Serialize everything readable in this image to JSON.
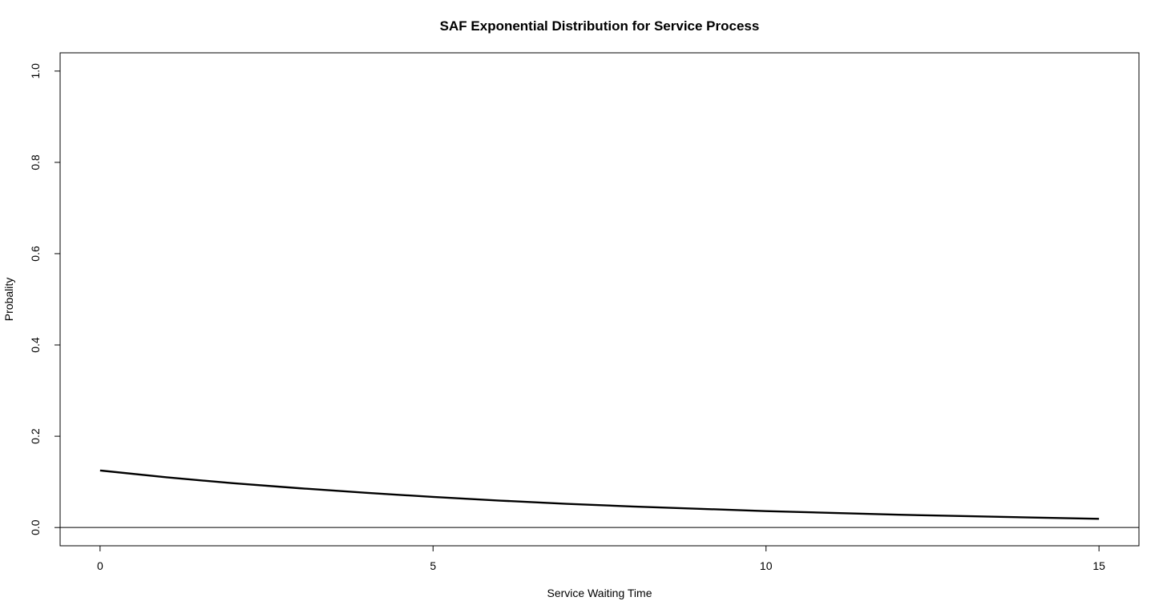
{
  "chart_data": {
    "type": "line",
    "title": "SAF Exponential Distribution for Service Process",
    "xlabel": "Service Waiting Time",
    "ylabel": "Probality",
    "xlim": [
      -0.6,
      15.6
    ],
    "ylim": [
      -0.04,
      1.04
    ],
    "x_ticks": [
      0,
      5,
      10,
      15
    ],
    "x_tick_labels": [
      "0",
      "5",
      "10",
      "15"
    ],
    "y_ticks": [
      0.0,
      0.2,
      0.4,
      0.6,
      0.8,
      1.0
    ],
    "y_tick_labels": [
      "0.0",
      "0.2",
      "0.4",
      "0.6",
      "0.8",
      "1.0"
    ],
    "reference_line": {
      "y": 0
    },
    "grid": false,
    "legend": "none",
    "line_color": "#000000",
    "series": [
      {
        "x": [
          0,
          1,
          2,
          3,
          4,
          5,
          6,
          7,
          8,
          9,
          10,
          11,
          12,
          13,
          14,
          15
        ],
        "y": [
          0.125,
          0.11,
          0.097,
          0.086,
          0.076,
          0.067,
          0.059,
          0.052,
          0.046,
          0.041,
          0.036,
          0.032,
          0.028,
          0.025,
          0.022,
          0.019
        ]
      }
    ]
  }
}
